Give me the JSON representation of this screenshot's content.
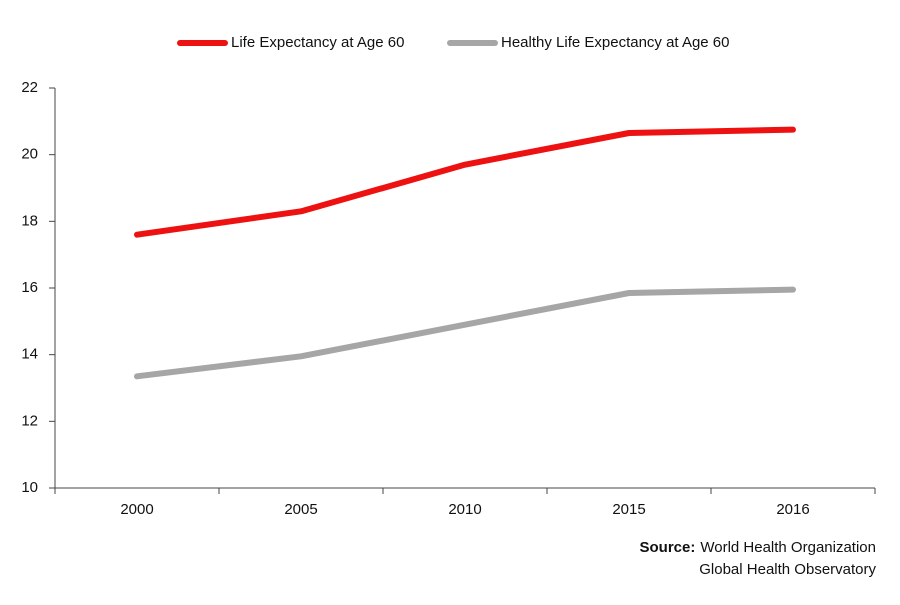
{
  "chart_data": {
    "type": "line",
    "categories": [
      "2000",
      "2005",
      "2010",
      "2015",
      "2016"
    ],
    "series": [
      {
        "name": "Life Expectancy at Age 60",
        "color": "#ee1111",
        "values": [
          17.6,
          18.3,
          19.7,
          20.65,
          20.75
        ]
      },
      {
        "name": "Healthy Life Expectancy at Age 60",
        "color": "#a6a6a6",
        "values": [
          13.35,
          13.95,
          14.9,
          15.85,
          15.95
        ]
      }
    ],
    "ylim": [
      10,
      22
    ],
    "yticks": [
      10,
      12,
      14,
      16,
      18,
      20,
      22
    ],
    "grid": false,
    "legend": "top",
    "source_label": "Source:",
    "source_lines": [
      "World Health Organization",
      "Global Health Observatory"
    ]
  }
}
